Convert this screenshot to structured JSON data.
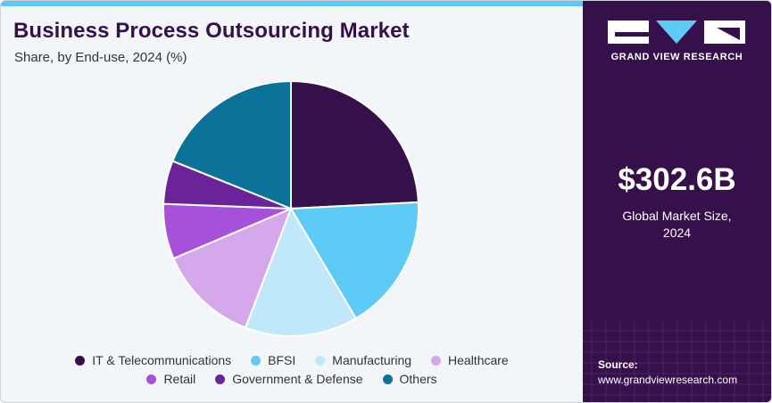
{
  "header": {
    "title": "Business Process Outsourcing Market",
    "subtitle": "Share, by End-use, 2024 (%)"
  },
  "chart_data": {
    "type": "pie",
    "title": "Business Process Outsourcing Market",
    "subtitle": "Share, by End-use, 2024 (%)",
    "start": "12 o'clock, clockwise",
    "slices": [
      {
        "label": "IT & Telecommunications",
        "value": 24.2,
        "color": "#35104a"
      },
      {
        "label": "BFSI",
        "value": 17.3,
        "color": "#5ecbf6"
      },
      {
        "label": "Manufacturing",
        "value": 14.3,
        "color": "#bfe9fa"
      },
      {
        "label": "Healthcare",
        "value": 12.8,
        "color": "#d4a8ea"
      },
      {
        "label": "Retail",
        "value": 7.0,
        "color": "#a751da"
      },
      {
        "label": "Government & Defense",
        "value": 5.5,
        "color": "#6b2399"
      },
      {
        "label": "Others",
        "value": 18.9,
        "color": "#0b729a"
      }
    ],
    "legend_position": "bottom"
  },
  "legend": {
    "row1": [
      {
        "label": "IT & Telecommunications",
        "color": "#35104a"
      },
      {
        "label": "BFSI",
        "color": "#5ecbf6"
      },
      {
        "label": "Manufacturing",
        "color": "#bfe9fa"
      },
      {
        "label": "Healthcare",
        "color": "#d4a8ea"
      }
    ],
    "row2": [
      {
        "label": "Retail",
        "color": "#a751da"
      },
      {
        "label": "Government & Defense",
        "color": "#6b2399"
      },
      {
        "label": "Others",
        "color": "#0b729a"
      }
    ]
  },
  "sidebar": {
    "brand": "GRAND VIEW RESEARCH",
    "market_size_value": "$302.6B",
    "market_size_label_line1": "Global Market Size,",
    "market_size_label_line2": "2024",
    "source_label": "Source:",
    "source_url": "www.grandviewresearch.com",
    "logo_icon": "grand-view-research-logo"
  },
  "colors": {
    "brand_dark": "#35104a",
    "accent": "#5dc8f4",
    "panel_bg": "#f3f6f9"
  }
}
